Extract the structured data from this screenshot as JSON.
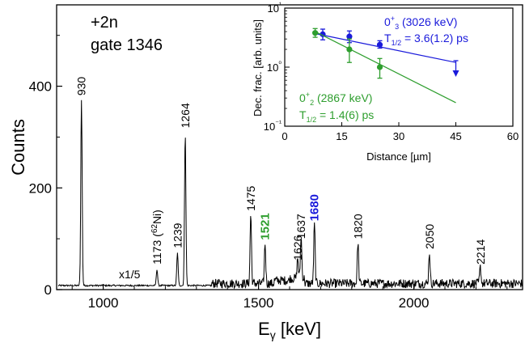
{
  "main_panel": {
    "annotation_line1": "+2n",
    "annotation_line2": "gate 1346",
    "scale_note": "x1/5"
  },
  "inset": {
    "xlabel": "Distance [µm]",
    "ylabel": "Dec. frac. [arb. units]",
    "series_labels": {
      "state1_name": "0⁺₃ (3026 keV)",
      "state1_half_life": "T1/2 = 3.6(1.2) ps",
      "state2_name": "0⁺₂ (2867 keV)",
      "state2_half_life": "T1/2 = 1.4(6) ps"
    }
  },
  "chart_data": [
    {
      "type": "line",
      "title": "",
      "xlabel": "Eγ [keV]",
      "ylabel": "Counts",
      "xlim": [
        850,
        2350
      ],
      "ylim": [
        0,
        560
      ],
      "x_ticks": [
        1000,
        1500,
        2000
      ],
      "y_ticks": [
        0,
        200,
        400
      ],
      "baseline_counts": 8,
      "scale_change_at_keV": 1350,
      "peaks": [
        {
          "energy": 930,
          "counts": 372,
          "label": "930",
          "color": "#000000"
        },
        {
          "energy": 1173,
          "counts": 40,
          "label": "1173 (62Ni)",
          "color": "#000000"
        },
        {
          "energy": 1239,
          "counts": 72,
          "label": "1239",
          "color": "#000000"
        },
        {
          "energy": 1264,
          "counts": 308,
          "label": "1264",
          "color": "#000000"
        },
        {
          "energy": 1475,
          "counts": 145,
          "label": "1475",
          "color": "#000000"
        },
        {
          "energy": 1521,
          "counts": 88,
          "label": "1521",
          "color": "#2e9e2e"
        },
        {
          "energy": 1626,
          "counts": 48,
          "label": "1626",
          "color": "#000000"
        },
        {
          "energy": 1637,
          "counts": 90,
          "label": "1637",
          "color": "#000000"
        },
        {
          "energy": 1680,
          "counts": 125,
          "label": "1680",
          "color": "#1a1adb"
        },
        {
          "energy": 1820,
          "counts": 90,
          "label": "1820",
          "color": "#000000"
        },
        {
          "energy": 2050,
          "counts": 70,
          "label": "2050",
          "color": "#000000"
        },
        {
          "energy": 2214,
          "counts": 40,
          "label": "2214",
          "color": "#000000"
        }
      ]
    },
    {
      "type": "scatter",
      "title": "",
      "xlabel": "Distance [µm]",
      "ylabel": "Dec. frac. [arb. units]",
      "xlim": [
        0,
        60
      ],
      "ylim": [
        0.1,
        10
      ],
      "y_scale": "log",
      "x_ticks": [
        0,
        15,
        30,
        45,
        60
      ],
      "y_ticks": [
        "10⁻¹",
        "10⁰",
        "10¹"
      ],
      "series": [
        {
          "name": "0⁺₃ (3026 keV)",
          "color": "#1a1adb",
          "points": [
            {
              "x": 10,
              "y": 3.6,
              "err_lo": 2.9,
              "err_hi": 4.4
            },
            {
              "x": 17,
              "y": 3.3,
              "err_lo": 2.6,
              "err_hi": 4.1
            },
            {
              "x": 25,
              "y": 2.4,
              "err_lo": 2.1,
              "err_hi": 2.8
            }
          ],
          "upper_limit": {
            "x": 45,
            "y": 1.0
          },
          "fit": {
            "x0": 8,
            "y0": 3.7,
            "x1": 45,
            "y1": 1.2
          }
        },
        {
          "name": "0⁺₂ (2867 keV)",
          "color": "#2e9e2e",
          "points": [
            {
              "x": 8,
              "y": 3.8,
              "err_lo": 3.2,
              "err_hi": 4.5
            },
            {
              "x": 17,
              "y": 2.0,
              "err_lo": 1.2,
              "err_hi": 3.0
            },
            {
              "x": 25,
              "y": 1.0,
              "err_lo": 0.65,
              "err_hi": 1.4
            }
          ],
          "fit": {
            "x0": 8,
            "y0": 4.0,
            "x1": 45,
            "y1": 0.25
          }
        }
      ]
    }
  ]
}
